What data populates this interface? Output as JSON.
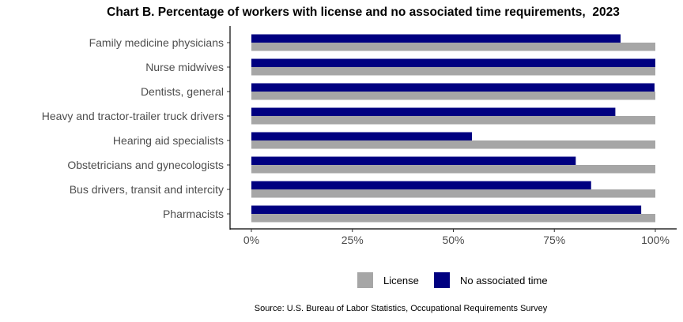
{
  "chart_data": {
    "type": "bar",
    "orientation": "horizontal",
    "title": "Chart B. Percentage of workers with license and no associated time requirements,  2023",
    "categories": [
      "Family medicine physicians",
      "Nurse midwives",
      "Dentists, general",
      "Heavy and tractor-trailer truck drivers",
      "Hearing aid specialists",
      "Obstetricians and gynecologists",
      "Bus drivers, transit and intercity",
      "Pharmacists"
    ],
    "series": [
      {
        "name": "License",
        "color": "#a6a6a6",
        "values": [
          100,
          100,
          100,
          100,
          100,
          100,
          100,
          100
        ]
      },
      {
        "name": "No associated time",
        "color": "#000080",
        "values": [
          91.4,
          100,
          99.8,
          90.1,
          54.6,
          80.3,
          84.1,
          96.5
        ]
      }
    ],
    "xlim": [
      0,
      100
    ],
    "xticks": [
      "0%",
      "25%",
      "50%",
      "75%",
      "100%"
    ],
    "xlabel": "",
    "ylabel": "",
    "grid": false,
    "legend_position": "bottom"
  },
  "source": "Source: U.S. Bureau of Labor Statistics, Occupational Requirements Survey"
}
